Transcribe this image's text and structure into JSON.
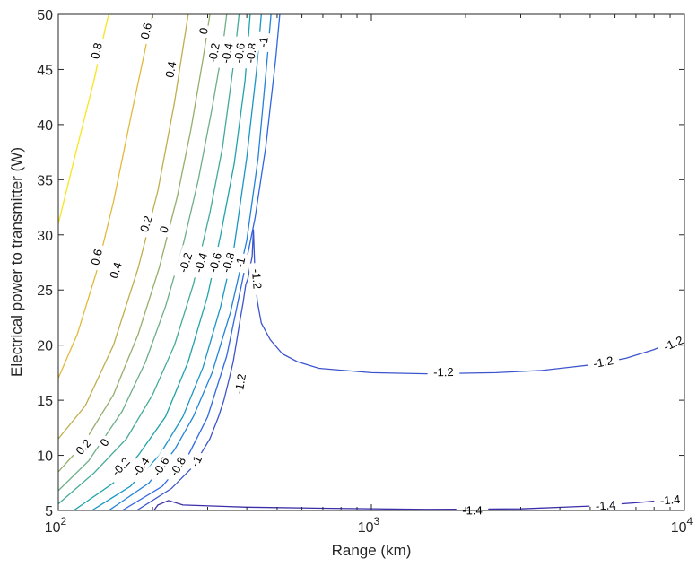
{
  "chart_data": {
    "type": "contour",
    "xlabel": "Range (km)",
    "ylabel": "Electrical power to transmitter (W)",
    "xscale": "log",
    "xlim": [
      100,
      10000
    ],
    "ylim": [
      5,
      50
    ],
    "x_ticks": [
      {
        "value": 100,
        "base": "10",
        "exp": "2"
      },
      {
        "value": 1000,
        "base": "10",
        "exp": "3"
      },
      {
        "value": 10000,
        "base": "10",
        "exp": "4"
      }
    ],
    "y_ticks": [
      {
        "value": 5,
        "label": "5"
      },
      {
        "value": 10,
        "label": "10"
      },
      {
        "value": 15,
        "label": "15"
      },
      {
        "value": 20,
        "label": "20"
      },
      {
        "value": 25,
        "label": "25"
      },
      {
        "value": 30,
        "label": "30"
      },
      {
        "value": 35,
        "label": "35"
      },
      {
        "value": 40,
        "label": "40"
      },
      {
        "value": 45,
        "label": "45"
      },
      {
        "value": 50,
        "label": "50"
      }
    ],
    "grid": false,
    "levels": [
      {
        "level": 0.8,
        "label": "0.8",
        "color": "#f9e51f",
        "points": [
          [
            100,
            31
          ],
          [
            115,
            38
          ],
          [
            130,
            44
          ],
          [
            142,
            49
          ],
          [
            145,
            50
          ]
        ],
        "label_at": [
          [
            132,
            46.7
          ]
        ]
      },
      {
        "level": 0.6,
        "label": "0.6",
        "color": "#e2b93a",
        "points": [
          [
            100,
            17
          ],
          [
            115,
            21
          ],
          [
            132,
            26.5
          ],
          [
            150,
            33
          ],
          [
            170,
            40.5
          ],
          [
            190,
            47
          ],
          [
            200,
            50
          ]
        ],
        "label_at": [
          [
            132,
            28
          ],
          [
            190,
            48.5
          ]
        ]
      },
      {
        "level": 0.4,
        "label": "0.4",
        "color": "#bfae4c",
        "points": [
          [
            100,
            11.5
          ],
          [
            122,
            14.5
          ],
          [
            150,
            20
          ],
          [
            180,
            27
          ],
          [
            208,
            34
          ],
          [
            235,
            42
          ],
          [
            260,
            50
          ]
        ],
        "label_at": [
          [
            152,
            26.8
          ],
          [
            228,
            45
          ]
        ]
      },
      {
        "level": 0.2,
        "label": "0.2",
        "color": "#93ae6b",
        "points": [
          [
            100,
            8.5
          ],
          [
            120,
            11
          ],
          [
            150,
            15.5
          ],
          [
            180,
            21
          ],
          [
            210,
            27
          ],
          [
            240,
            33.5
          ],
          [
            265,
            39.5
          ],
          [
            290,
            46
          ],
          [
            305,
            50
          ]
        ],
        "label_at": [
          [
            120,
            10.8
          ],
          [
            190,
            31
          ]
        ]
      },
      {
        "level": 0,
        "label": "0",
        "color": "#6dae87",
        "points": [
          [
            100,
            6.8
          ],
          [
            125,
            9.5
          ],
          [
            160,
            14
          ],
          [
            190,
            18.5
          ],
          [
            220,
            23.5
          ],
          [
            250,
            29
          ],
          [
            280,
            35
          ],
          [
            310,
            41.5
          ],
          [
            335,
            47
          ],
          [
            345,
            50
          ]
        ],
        "label_at": [
          [
            140,
            11.2
          ],
          [
            217,
            30.5
          ],
          [
            290,
            48.5
          ]
        ]
      },
      {
        "level": -0.2,
        "label": "-0.2",
        "color": "#43aa98",
        "points": [
          [
            100,
            5.6
          ],
          [
            130,
            8.4
          ],
          [
            165,
            11.5
          ],
          [
            200,
            15.5
          ],
          [
            235,
            20
          ],
          [
            270,
            25.5
          ],
          [
            305,
            32
          ],
          [
            335,
            38
          ],
          [
            365,
            46
          ],
          [
            378,
            50
          ]
        ],
        "label_at": [
          [
            158,
            9
          ],
          [
            254,
            27.5
          ],
          [
            313,
            46.5
          ]
        ]
      },
      {
        "level": -0.4,
        "label": "-0.4",
        "color": "#1fa3a8",
        "points": [
          [
            112,
            5
          ],
          [
            150,
            7.5
          ],
          [
            180,
            10
          ],
          [
            220,
            13.5
          ],
          [
            260,
            18.5
          ],
          [
            300,
            24.5
          ],
          [
            330,
            30
          ],
          [
            365,
            36.5
          ],
          [
            395,
            44
          ],
          [
            410,
            50
          ]
        ],
        "label_at": [
          [
            183,
            9
          ],
          [
            284,
            27.5
          ],
          [
            345,
            46.5
          ]
        ]
      },
      {
        "level": -0.6,
        "label": "-0.6",
        "color": "#1a96c5",
        "points": [
          [
            128,
            5
          ],
          [
            170,
            7.2
          ],
          [
            210,
            10
          ],
          [
            250,
            13.5
          ],
          [
            290,
            18
          ],
          [
            330,
            23.5
          ],
          [
            365,
            29
          ],
          [
            400,
            37
          ],
          [
            430,
            45
          ],
          [
            445,
            50
          ]
        ],
        "label_at": [
          [
            212,
            9
          ],
          [
            316,
            27.5
          ],
          [
            378,
            46.5
          ]
        ]
      },
      {
        "level": -0.8,
        "label": "-0.8",
        "color": "#2283d8",
        "points": [
          [
            145,
            5
          ],
          [
            195,
            7.5
          ],
          [
            235,
            10.5
          ],
          [
            270,
            13.5
          ],
          [
            310,
            17.5
          ],
          [
            355,
            23
          ],
          [
            400,
            29.5
          ],
          [
            435,
            37
          ],
          [
            465,
            46
          ],
          [
            478,
            50
          ]
        ],
        "label_at": [
          [
            240,
            9
          ],
          [
            348,
            27.5
          ],
          [
            412,
            46.5
          ]
        ]
      },
      {
        "level": -1,
        "label": "-1",
        "color": "#2f67e0",
        "points": [
          [
            160,
            5
          ],
          [
            215,
            7.2
          ],
          [
            260,
            10
          ],
          [
            300,
            13.5
          ],
          [
            345,
            19
          ],
          [
            385,
            25.5
          ],
          [
            425,
            31.5
          ],
          [
            460,
            38
          ],
          [
            495,
            46
          ],
          [
            510,
            50
          ]
        ],
        "label_at": [
          [
            275,
            9.5
          ],
          [
            380,
            27.5
          ],
          [
            450,
            47.5
          ]
        ]
      },
      {
        "level": -1.2,
        "label": "-1.2",
        "color": "#3d55cc",
        "points": [
          [
            178,
            5
          ],
          [
            230,
            7
          ],
          [
            270,
            9
          ],
          [
            305,
            11.5
          ],
          [
            325,
            13.5
          ],
          [
            338,
            15
          ],
          [
            352,
            17
          ],
          [
            362,
            18.5
          ],
          [
            372,
            20.5
          ],
          [
            382,
            22.5
          ],
          [
            389,
            23.8
          ],
          [
            397,
            25.5
          ],
          [
            403,
            26
          ],
          [
            410,
            27.2
          ],
          [
            416,
            28
          ],
          [
            420,
            30.5
          ],
          [
            424,
            27
          ],
          [
            432,
            24
          ],
          [
            445,
            22
          ],
          [
            475,
            20.5
          ],
          [
            520,
            19.2
          ],
          [
            580,
            18.5
          ],
          [
            680,
            17.9
          ],
          [
            1000,
            17.5
          ],
          [
            1500,
            17.4
          ],
          [
            2500,
            17.5
          ],
          [
            3500,
            17.7
          ],
          [
            5000,
            18.2
          ],
          [
            6500,
            18.8
          ],
          [
            8000,
            19.6
          ],
          [
            10000,
            20.8
          ]
        ],
        "label_at": [
          [
            1700,
            17.6
          ],
          [
            5500,
            18.5
          ],
          [
            9200,
            20.2
          ],
          [
            380,
            16.5
          ],
          [
            432,
            26
          ]
        ]
      },
      {
        "level": -1.4,
        "label": "-1.4",
        "color": "#3a2eaa",
        "points": [
          [
            202,
            5
          ],
          [
            208,
            5.5
          ],
          [
            225,
            5.9
          ],
          [
            250,
            5.5
          ],
          [
            400,
            5.3
          ],
          [
            700,
            5.2
          ],
          [
            1500,
            5.1
          ],
          [
            3000,
            5.15
          ],
          [
            5000,
            5.4
          ],
          [
            7000,
            5.7
          ],
          [
            10000,
            6.1
          ]
        ],
        "label_at": [
          [
            2100,
            5.05
          ],
          [
            5600,
            5.5
          ],
          [
            9000,
            6
          ]
        ]
      }
    ]
  }
}
